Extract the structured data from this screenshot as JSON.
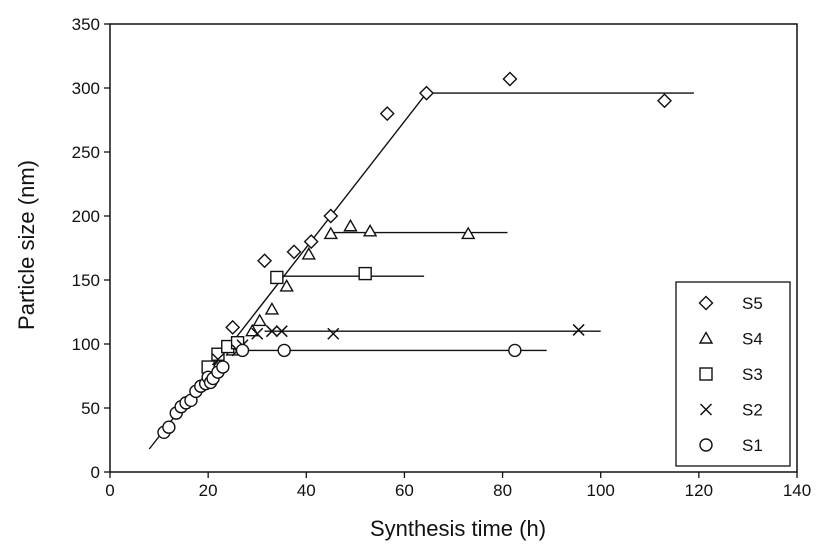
{
  "chart_data": {
    "type": "scatter",
    "title": "",
    "xlabel": "Synthesis time (h)",
    "ylabel": "Particle size (nm)",
    "xlim": [
      0,
      140
    ],
    "ylim": [
      0,
      350
    ],
    "xticks": [
      "0",
      "20",
      "40",
      "60",
      "80",
      "100",
      "120",
      "140"
    ],
    "yticks": [
      "0",
      "50",
      "100",
      "150",
      "200",
      "250",
      "300",
      "350"
    ],
    "grid": false,
    "legend_position": "bottom-right",
    "series": [
      {
        "name": "S5",
        "marker": "diamond",
        "points": [
          [
            25,
            113
          ],
          [
            31.5,
            165
          ],
          [
            37.5,
            172
          ],
          [
            41,
            180
          ],
          [
            45,
            200
          ],
          [
            56.5,
            280
          ],
          [
            64.5,
            296
          ],
          [
            81.5,
            307
          ],
          [
            113,
            290
          ]
        ],
        "fit": [
          [
            8,
            18
          ],
          [
            64.5,
            296
          ],
          [
            119,
            296
          ]
        ]
      },
      {
        "name": "S4",
        "marker": "triangle",
        "points": [
          [
            25,
            95
          ],
          [
            29,
            110
          ],
          [
            30.5,
            118
          ],
          [
            33,
            127
          ],
          [
            36,
            145
          ],
          [
            40.5,
            170
          ],
          [
            45,
            186
          ],
          [
            49,
            192
          ],
          [
            53,
            188
          ],
          [
            73,
            186
          ]
        ],
        "fit": [
          [
            45,
            187
          ],
          [
            81,
            187
          ]
        ]
      },
      {
        "name": "S3",
        "marker": "square",
        "points": [
          [
            20,
            82
          ],
          [
            22,
            92
          ],
          [
            24,
            98
          ],
          [
            26,
            101
          ],
          [
            34,
            152
          ],
          [
            52,
            155
          ]
        ],
        "fit": [
          [
            34.5,
            153
          ],
          [
            64,
            153
          ]
        ]
      },
      {
        "name": "S2",
        "marker": "x",
        "points": [
          [
            22,
            88
          ],
          [
            26,
            95
          ],
          [
            27,
            99
          ],
          [
            30,
            108
          ],
          [
            33,
            110
          ],
          [
            35,
            110
          ],
          [
            45.5,
            108
          ],
          [
            95.5,
            111
          ]
        ],
        "fit": [
          [
            31.5,
            110
          ],
          [
            100,
            110
          ]
        ]
      },
      {
        "name": "S1",
        "marker": "circle",
        "points": [
          [
            11,
            31
          ],
          [
            12,
            35
          ],
          [
            13.5,
            46
          ],
          [
            14.5,
            51
          ],
          [
            15.5,
            54
          ],
          [
            16.5,
            56
          ],
          [
            17.5,
            63
          ],
          [
            18.5,
            67
          ],
          [
            19.5,
            69
          ],
          [
            20,
            74
          ],
          [
            20.5,
            70
          ],
          [
            21,
            73
          ],
          [
            22,
            78
          ],
          [
            23,
            82
          ],
          [
            27,
            95
          ],
          [
            35.5,
            95
          ],
          [
            82.5,
            95
          ]
        ],
        "fit": [
          [
            26,
            95
          ],
          [
            89,
            95
          ]
        ]
      }
    ]
  }
}
